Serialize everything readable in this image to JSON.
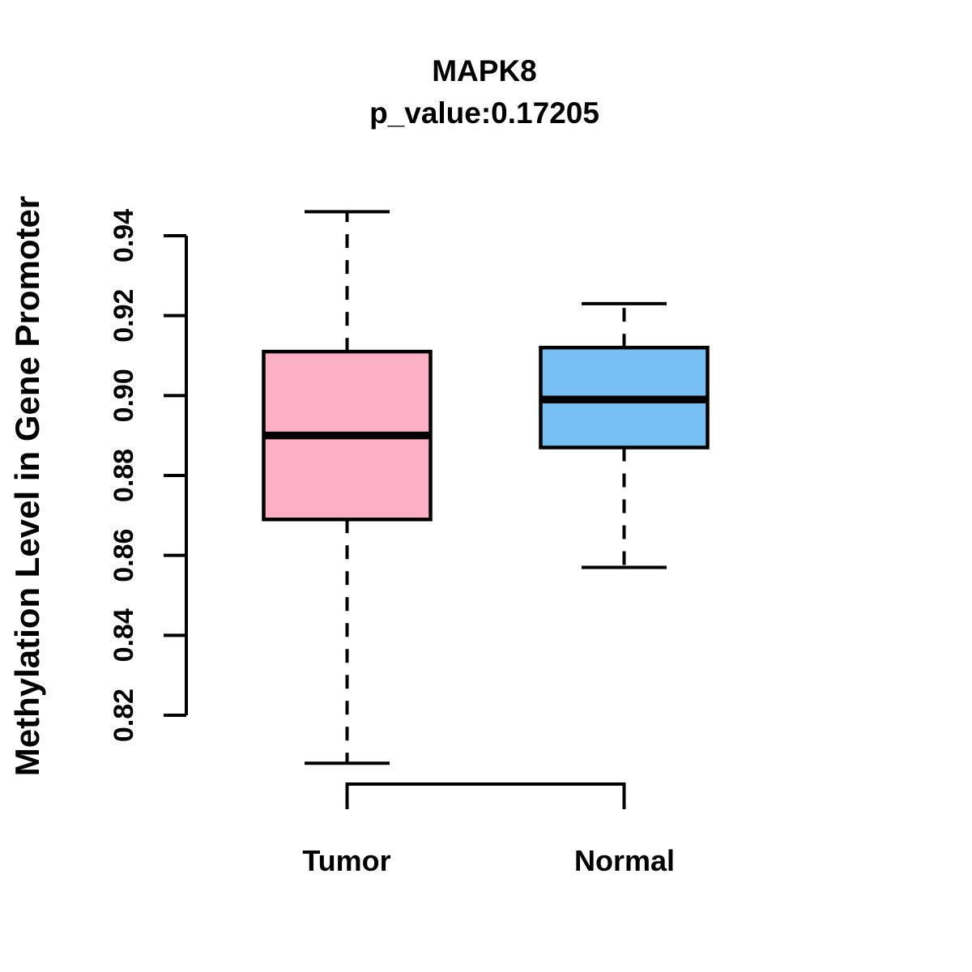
{
  "chart_data": {
    "type": "boxplot",
    "title": "MAPK8",
    "subtitle": "p_value:0.17205",
    "ylabel": "Methylation Level in Gene Promoter",
    "xlabel": "",
    "categories": [
      "Tumor",
      "Normal"
    ],
    "y_axis": {
      "min": 0.82,
      "max": 0.94,
      "ticks": [
        0.82,
        0.84,
        0.86,
        0.88,
        0.9,
        0.92,
        0.94
      ],
      "decimals": 2
    },
    "series": [
      {
        "name": "Tumor",
        "color": "#FDB0C5",
        "whisker_low": 0.808,
        "q1": 0.869,
        "median": 0.89,
        "q3": 0.911,
        "whisker_high": 0.946
      },
      {
        "name": "Normal",
        "color": "#77BFF3",
        "whisker_low": 0.857,
        "q1": 0.887,
        "median": 0.899,
        "q3": 0.912,
        "whisker_high": 0.923
      }
    ],
    "stroke_color": "#000000",
    "grid": false,
    "legend": false,
    "whisker_style": "dashed"
  }
}
